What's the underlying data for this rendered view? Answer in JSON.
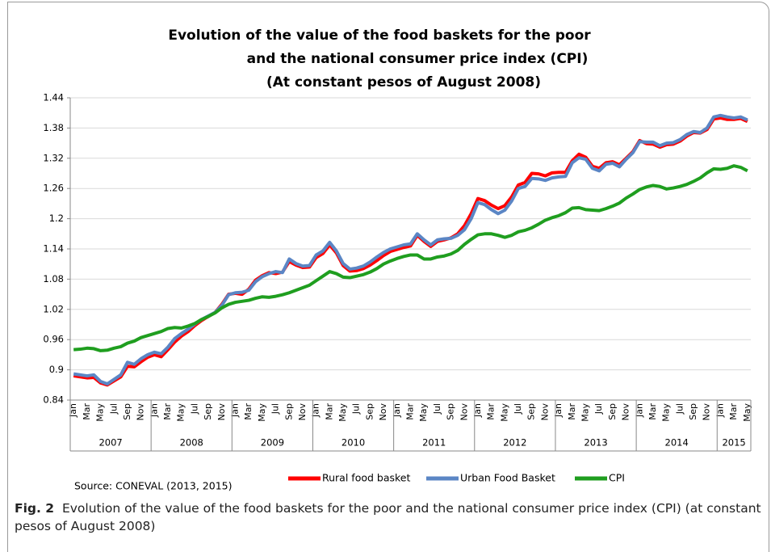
{
  "chart_data": {
    "type": "line",
    "title": [
      "Evolution of the value of the food baskets for the poor",
      "and the national consumer price index (CPI)",
      "(At constant pesos of August 2008)"
    ],
    "categories": [
      "Jan",
      null,
      "Mar",
      null,
      "May",
      null,
      "Jul",
      null,
      "Sep",
      null,
      "Nov",
      null,
      "Jan",
      null,
      "Mar",
      null,
      "May",
      null,
      "Jul",
      null,
      "Sep",
      null,
      "Nov",
      null,
      "Jan",
      null,
      "Mar",
      null,
      "May",
      null,
      "Jul",
      null,
      "Sep",
      null,
      "Nov",
      null,
      "Jan",
      null,
      "Mar",
      null,
      "May",
      null,
      "Jul",
      null,
      "Sep",
      null,
      "Nov",
      null,
      "Jan",
      null,
      "Mar",
      null,
      "May",
      null,
      "Jul",
      null,
      "Sep",
      null,
      "Nov",
      null,
      "Jan",
      null,
      "Mar",
      null,
      "May",
      null,
      "Jul",
      null,
      "Sep",
      null,
      "Nov",
      null,
      "Jan",
      null,
      "Mar",
      null,
      "May",
      null,
      "Jul",
      null,
      "Sep",
      null,
      "Nov",
      null,
      "Jan",
      null,
      "Mar",
      null,
      "May",
      null,
      "Jul",
      null,
      "Sep",
      null,
      "Nov",
      null,
      "Jan",
      null,
      "Mar",
      null,
      "May"
    ],
    "year_groups": [
      "2007",
      "2008",
      "2009",
      "2010",
      "2011",
      "2012",
      "2013",
      "2014",
      "2015"
    ],
    "series": [
      {
        "name": "Rural food basket",
        "color": "#ff0000",
        "values": [
          0.888,
          0.886,
          0.884,
          0.885,
          0.874,
          0.87,
          0.878,
          0.886,
          0.907,
          0.906,
          0.916,
          0.925,
          0.93,
          0.926,
          0.94,
          0.955,
          0.967,
          0.976,
          0.988,
          0.998,
          1.006,
          1.014,
          1.03,
          1.05,
          1.052,
          1.05,
          1.06,
          1.078,
          1.087,
          1.093,
          1.091,
          1.094,
          1.115,
          1.108,
          1.103,
          1.104,
          1.123,
          1.131,
          1.148,
          1.132,
          1.107,
          1.096,
          1.097,
          1.101,
          1.108,
          1.117,
          1.127,
          1.135,
          1.139,
          1.143,
          1.146,
          1.167,
          1.155,
          1.145,
          1.155,
          1.158,
          1.162,
          1.17,
          1.186,
          1.21,
          1.24,
          1.236,
          1.227,
          1.22,
          1.226,
          1.243,
          1.267,
          1.272,
          1.29,
          1.289,
          1.285,
          1.291,
          1.292,
          1.292,
          1.315,
          1.328,
          1.322,
          1.304,
          1.3,
          1.311,
          1.313,
          1.307,
          1.32,
          1.333,
          1.355,
          1.349,
          1.348,
          1.342,
          1.347,
          1.348,
          1.354,
          1.364,
          1.371,
          1.37,
          1.377,
          1.398,
          1.4,
          1.397,
          1.397,
          1.399,
          1.393
        ]
      },
      {
        "name": "Urban Food Basket",
        "color": "#5b86c5",
        "values": [
          0.892,
          0.89,
          0.888,
          0.89,
          0.877,
          0.872,
          0.881,
          0.89,
          0.915,
          0.911,
          0.922,
          0.93,
          0.935,
          0.932,
          0.945,
          0.962,
          0.972,
          0.981,
          0.991,
          1.0,
          1.007,
          1.014,
          1.028,
          1.049,
          1.053,
          1.054,
          1.058,
          1.075,
          1.085,
          1.091,
          1.095,
          1.093,
          1.12,
          1.111,
          1.106,
          1.107,
          1.128,
          1.136,
          1.153,
          1.136,
          1.111,
          1.1,
          1.102,
          1.106,
          1.114,
          1.124,
          1.133,
          1.14,
          1.144,
          1.148,
          1.15,
          1.17,
          1.158,
          1.148,
          1.158,
          1.16,
          1.161,
          1.167,
          1.178,
          1.2,
          1.232,
          1.228,
          1.218,
          1.21,
          1.217,
          1.235,
          1.26,
          1.264,
          1.28,
          1.279,
          1.276,
          1.281,
          1.283,
          1.284,
          1.311,
          1.321,
          1.318,
          1.3,
          1.295,
          1.308,
          1.31,
          1.303,
          1.318,
          1.331,
          1.353,
          1.352,
          1.352,
          1.345,
          1.35,
          1.351,
          1.357,
          1.367,
          1.373,
          1.371,
          1.38,
          1.402,
          1.405,
          1.402,
          1.4,
          1.402,
          1.396
        ]
      },
      {
        "name": "CPI",
        "color": "#1f9e1f",
        "values": [
          0.94,
          0.941,
          0.943,
          0.942,
          0.938,
          0.939,
          0.943,
          0.946,
          0.953,
          0.957,
          0.964,
          0.968,
          0.972,
          0.976,
          0.982,
          0.984,
          0.983,
          0.987,
          0.992,
          1.0,
          1.006,
          1.013,
          1.023,
          1.03,
          1.034,
          1.036,
          1.038,
          1.042,
          1.045,
          1.044,
          1.046,
          1.049,
          1.053,
          1.058,
          1.063,
          1.068,
          1.077,
          1.086,
          1.095,
          1.091,
          1.084,
          1.083,
          1.086,
          1.089,
          1.094,
          1.101,
          1.11,
          1.116,
          1.121,
          1.125,
          1.128,
          1.128,
          1.12,
          1.12,
          1.124,
          1.126,
          1.13,
          1.137,
          1.149,
          1.159,
          1.168,
          1.17,
          1.17,
          1.167,
          1.163,
          1.167,
          1.174,
          1.177,
          1.182,
          1.189,
          1.197,
          1.202,
          1.206,
          1.212,
          1.221,
          1.222,
          1.218,
          1.217,
          1.216,
          1.22,
          1.225,
          1.231,
          1.241,
          1.249,
          1.258,
          1.263,
          1.266,
          1.264,
          1.259,
          1.261,
          1.264,
          1.268,
          1.274,
          1.281,
          1.291,
          1.299,
          1.298,
          1.3,
          1.305,
          1.302,
          1.295
        ]
      }
    ],
    "ylim": [
      0.84,
      1.44
    ],
    "yticks": [
      0.84,
      0.9,
      0.96,
      1.02,
      1.08,
      1.14,
      1.2,
      1.26,
      1.32,
      1.38,
      1.44
    ],
    "grid": true,
    "source": "Source: CONEVAL (2013, 2015)"
  },
  "caption": {
    "label": "Fig. 2",
    "text": "Evolution of the value of the food baskets for the poor and the national consumer price index (CPI) (at constant pesos of August 2008)"
  }
}
